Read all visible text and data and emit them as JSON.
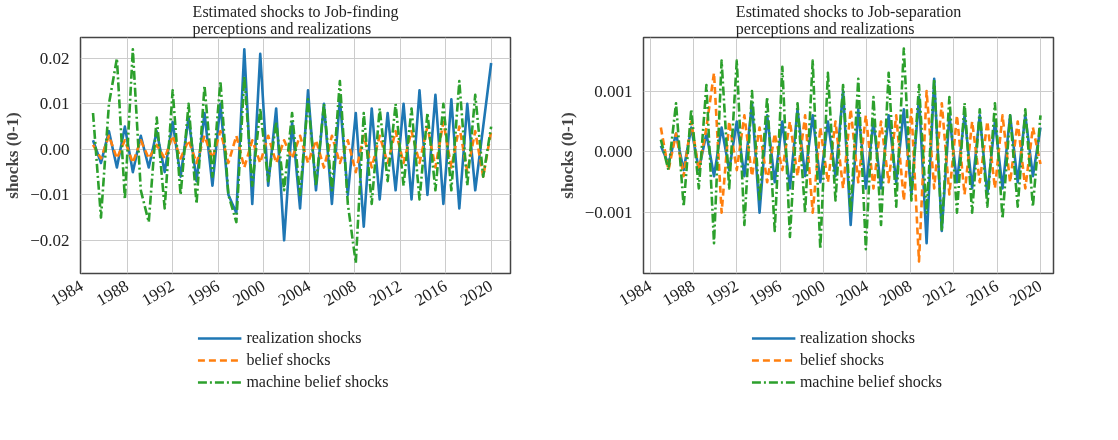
{
  "chart_data": [
    {
      "type": "line",
      "title": "Estimated shocks to Job-finding\nperceptions and realizations",
      "ylabel": "shocks (0-1)",
      "x": [
        1985.0,
        1985.7,
        1986.4,
        1987.1,
        1987.8,
        1988.5,
        1989.2,
        1989.9,
        1990.6,
        1991.3,
        1992.0,
        1992.7,
        1993.4,
        1994.1,
        1994.8,
        1995.5,
        1996.2,
        1996.9,
        1997.6,
        1998.3,
        1999.0,
        1999.7,
        2000.4,
        2001.1,
        2001.8,
        2002.5,
        2003.2,
        2003.9,
        2004.6,
        2005.3,
        2006.0,
        2006.7,
        2007.4,
        2008.1,
        2008.8,
        2009.5,
        2010.2,
        2010.9,
        2011.6,
        2012.3,
        2013.0,
        2013.7,
        2014.4,
        2015.1,
        2015.8,
        2016.5,
        2017.2,
        2017.9,
        2018.6,
        2019.3,
        2020.0
      ],
      "series": [
        {
          "name": "realization shocks",
          "color": "#1f77b4",
          "line_style": "solid",
          "values": [
            0.002,
            -0.003,
            0.004,
            -0.004,
            0.005,
            -0.005,
            0.003,
            -0.004,
            0.004,
            -0.005,
            0.006,
            -0.006,
            0.007,
            -0.007,
            0.008,
            -0.008,
            0.01,
            -0.01,
            -0.014,
            0.022,
            -0.012,
            0.021,
            -0.008,
            0.009,
            -0.02,
            0.006,
            -0.013,
            0.013,
            -0.009,
            0.01,
            -0.012,
            0.011,
            -0.01,
            0.008,
            -0.017,
            0.009,
            -0.011,
            0.008,
            -0.009,
            0.01,
            -0.011,
            0.013,
            -0.01,
            0.012,
            -0.012,
            0.011,
            -0.013,
            0.01,
            -0.009,
            0.005,
            0.019
          ]
        },
        {
          "name": "belief shocks",
          "color": "#ff7f0e",
          "line_style": "dashed",
          "values": [
            0.001,
            -0.002,
            0.003,
            -0.002,
            0.002,
            -0.003,
            0.002,
            -0.002,
            0.001,
            -0.002,
            0.003,
            -0.002,
            0.002,
            -0.003,
            0.003,
            -0.002,
            0.004,
            -0.003,
            0.003,
            -0.004,
            0.002,
            -0.003,
            0.003,
            -0.003,
            0.002,
            -0.002,
            0.003,
            -0.003,
            0.002,
            -0.004,
            0.003,
            -0.003,
            0.002,
            -0.005,
            0.003,
            -0.004,
            0.003,
            -0.003,
            0.004,
            -0.003,
            0.004,
            -0.003,
            0.005,
            -0.004,
            0.006,
            -0.004,
            0.005,
            -0.005,
            0.004,
            -0.006,
            0.004
          ]
        },
        {
          "name": "machine belief shocks",
          "color": "#2ca02c",
          "line_style": "dashdot",
          "values": [
            0.008,
            -0.015,
            0.01,
            0.02,
            -0.011,
            0.022,
            -0.009,
            -0.016,
            0.007,
            -0.013,
            0.013,
            -0.01,
            0.01,
            -0.012,
            0.014,
            -0.006,
            0.015,
            -0.01,
            -0.016,
            0.016,
            -0.008,
            0.009,
            -0.007,
            0.006,
            -0.009,
            0.008,
            -0.01,
            0.011,
            -0.008,
            0.01,
            -0.009,
            0.015,
            -0.012,
            -0.025,
            0.008,
            -0.012,
            0.009,
            -0.007,
            0.01,
            -0.008,
            0.009,
            -0.011,
            0.008,
            -0.009,
            0.01,
            -0.009,
            0.015,
            -0.008,
            0.012,
            -0.006,
            0.005
          ]
        }
      ],
      "xlim": [
        1983.9,
        2021.7
      ],
      "xticks": [
        1984,
        1988,
        1992,
        1996,
        2000,
        2004,
        2008,
        2012,
        2016,
        2020
      ],
      "ylim": [
        -0.0273,
        0.0246
      ],
      "yticks": [
        {
          "value": -0.02,
          "label": "−0.02"
        },
        {
          "value": -0.01,
          "label": "−0.01"
        },
        {
          "value": 0,
          "label": "0.00"
        },
        {
          "value": 0.01,
          "label": "0.01"
        },
        {
          "value": 0.02,
          "label": "0.02"
        }
      ],
      "grid": true,
      "legend": "bottom"
    },
    {
      "type": "line",
      "title": "Estimated shocks to Job-separation\nperceptions and realizations",
      "ylabel": "shocks (0-1)",
      "x": [
        1985.0,
        1985.7,
        1986.4,
        1987.1,
        1987.8,
        1988.5,
        1989.2,
        1989.9,
        1990.6,
        1991.3,
        1992.0,
        1992.7,
        1993.4,
        1994.1,
        1994.8,
        1995.5,
        1996.2,
        1996.9,
        1997.6,
        1998.3,
        1999.0,
        1999.7,
        2000.4,
        2001.1,
        2001.8,
        2002.5,
        2003.2,
        2003.9,
        2004.6,
        2005.3,
        2006.0,
        2006.7,
        2007.4,
        2008.1,
        2008.8,
        2009.5,
        2010.2,
        2010.9,
        2011.6,
        2012.3,
        2013.0,
        2013.7,
        2014.4,
        2015.1,
        2015.8,
        2016.5,
        2017.2,
        2017.9,
        2018.6,
        2019.3,
        2020.0
      ],
      "series": [
        {
          "name": "realization shocks",
          "color": "#1f77b4",
          "line_style": "solid",
          "values": [
            0.0001,
            -0.0002,
            0.0003,
            -0.0003,
            0.0004,
            -0.0003,
            0.0003,
            -0.0004,
            0.0004,
            -0.0003,
            0.0005,
            -0.0004,
            0.0008,
            -0.001,
            0.0006,
            -0.0005,
            0.0005,
            -0.0006,
            0.0007,
            -0.0004,
            0.0006,
            -0.0005,
            0.0005,
            -0.0004,
            0.001,
            -0.0012,
            0.0007,
            -0.0006,
            0.0005,
            -0.0006,
            0.0006,
            -0.0005,
            0.0007,
            -0.0007,
            0.0009,
            -0.0015,
            0.0012,
            -0.0013,
            0.0006,
            -0.0005,
            0.0006,
            -0.0006,
            0.0006,
            -0.0007,
            0.0005,
            -0.0006,
            0.0006,
            -0.0005,
            0.0006,
            -0.0004,
            0.0004
          ]
        },
        {
          "name": "belief shocks",
          "color": "#ff7f0e",
          "line_style": "dashed",
          "values": [
            0.0004,
            -0.0003,
            0.0003,
            -0.0004,
            0.0005,
            -0.0003,
            0.0004,
            0.0013,
            -0.001,
            0.0005,
            -0.0003,
            0.0006,
            -0.0004,
            0.0004,
            -0.0005,
            0.0003,
            -0.0003,
            0.0005,
            -0.0004,
            0.0006,
            -0.001,
            0.0004,
            -0.0005,
            0.0005,
            -0.0006,
            0.0007,
            -0.0005,
            0.0006,
            -0.0006,
            0.0005,
            -0.0005,
            0.0006,
            -0.0008,
            0.0007,
            -0.0018,
            0.001,
            -0.0006,
            0.0008,
            -0.0007,
            0.0006,
            -0.0007,
            0.0005,
            -0.0005,
            0.0005,
            -0.0006,
            0.0006,
            -0.0005,
            0.0005,
            -0.0006,
            0.0004,
            -0.0002
          ]
        },
        {
          "name": "machine belief shocks",
          "color": "#2ca02c",
          "line_style": "dashdot",
          "values": [
            0.0002,
            -0.0003,
            0.0008,
            -0.0009,
            0.0007,
            -0.0006,
            0.0011,
            -0.0015,
            0.0015,
            -0.0006,
            0.0015,
            -0.0012,
            0.001,
            -0.0008,
            0.0009,
            -0.0013,
            0.0014,
            -0.0014,
            0.0008,
            -0.001,
            0.0015,
            -0.0016,
            0.0013,
            -0.0008,
            0.0011,
            -0.001,
            0.0012,
            -0.0016,
            0.0009,
            -0.0012,
            0.0013,
            -0.0009,
            0.0017,
            -0.0008,
            0.0011,
            -0.001,
            0.0012,
            -0.0013,
            0.0009,
            -0.001,
            0.0008,
            -0.001,
            0.0007,
            -0.0009,
            0.0008,
            -0.0011,
            0.0006,
            -0.0009,
            0.0007,
            -0.0009,
            0.0006
          ]
        }
      ],
      "xlim": [
        1983.4,
        2021.2
      ],
      "xticks": [
        1984,
        1988,
        1992,
        1996,
        2000,
        2004,
        2008,
        2012,
        2016,
        2020
      ],
      "ylim": [
        -0.002,
        0.00188
      ],
      "yticks": [
        {
          "value": -0.001,
          "label": "−0.001"
        },
        {
          "value": 0,
          "label": "0.000"
        },
        {
          "value": 0.001,
          "label": "0.001"
        }
      ],
      "grid": true,
      "legend": "bottom"
    }
  ]
}
